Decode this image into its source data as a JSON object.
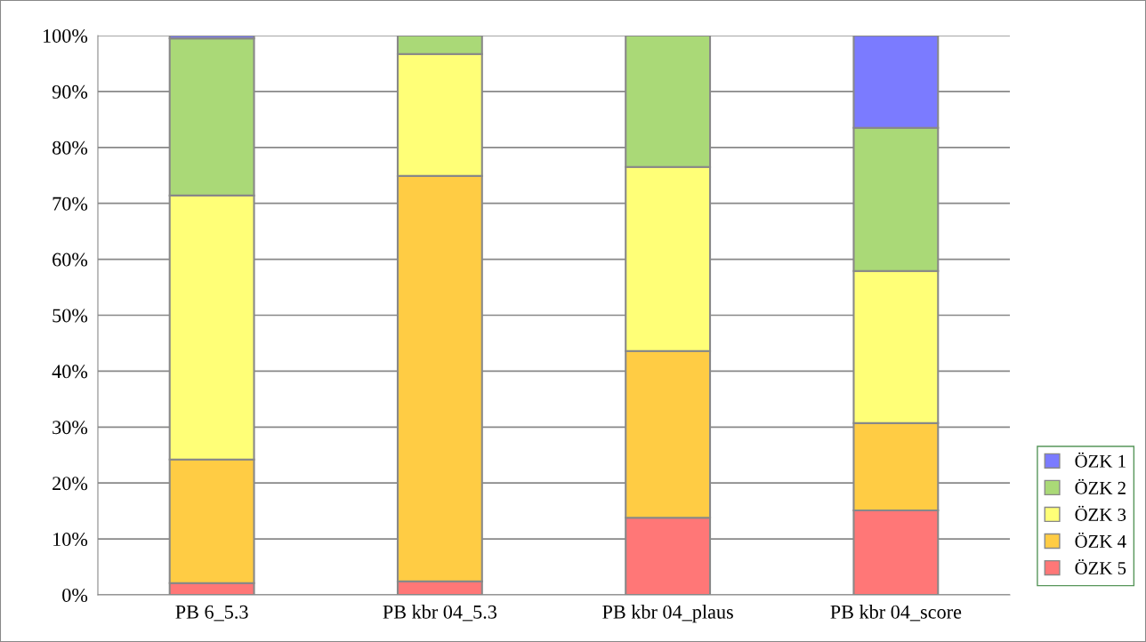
{
  "chart_data": {
    "type": "bar",
    "stacked": true,
    "categories": [
      "PB 6_5.3",
      "PB kbr 04_5.3",
      "PB kbr 04_plaus",
      "PB kbr 04_score"
    ],
    "series": [
      {
        "name": "ÖZK 5",
        "color": "#ff7777",
        "values": [
          2.1,
          2.4,
          13.8,
          15.1
        ]
      },
      {
        "name": "ÖZK 4",
        "color": "#ffcc44",
        "values": [
          22.1,
          72.5,
          29.8,
          15.6
        ]
      },
      {
        "name": "ÖZK 3",
        "color": "#ffff77",
        "values": [
          47.2,
          21.8,
          32.9,
          27.2
        ]
      },
      {
        "name": "ÖZK 2",
        "color": "#aad977",
        "values": [
          28.1,
          3.3,
          23.5,
          25.6
        ]
      },
      {
        "name": "ÖZK 1",
        "color": "#7b7bff",
        "values": [
          0.5,
          0,
          0,
          16.5
        ]
      }
    ],
    "ylim": [
      0,
      100
    ],
    "yticks": [
      {
        "value": 0,
        "label": "0%"
      },
      {
        "value": 10,
        "label": "10%"
      },
      {
        "value": 20,
        "label": "20%"
      },
      {
        "value": 30,
        "label": "30%"
      },
      {
        "value": 40,
        "label": "40%"
      },
      {
        "value": 50,
        "label": "50%"
      },
      {
        "value": 60,
        "label": "60%"
      },
      {
        "value": 70,
        "label": "70%"
      },
      {
        "value": 80,
        "label": "80%"
      },
      {
        "value": 90,
        "label": "90%"
      },
      {
        "value": 100,
        "label": "100%"
      }
    ],
    "grid": "y",
    "legend": "bottom right"
  }
}
